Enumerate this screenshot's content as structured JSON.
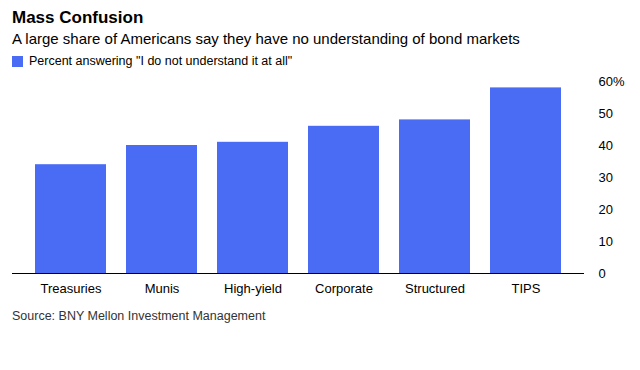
{
  "chart_data": {
    "type": "bar",
    "title": "Mass Confusion",
    "subtitle": "A large share of Americans say they have no understanding of bond markets",
    "caption": "Source: BNY Mellon Investment Management",
    "categories": [
      "Treasuries",
      "Munis",
      "High-yield",
      "Corporate",
      "Structured",
      "TIPS"
    ],
    "series": [
      {
        "name": "Percent answering \"I do not understand it at all\"",
        "color": "#4a6cf5",
        "values": [
          34,
          40,
          41,
          46,
          48,
          58
        ]
      }
    ],
    "ylim": [
      0,
      60
    ],
    "yticks": [
      0,
      10,
      20,
      30,
      40,
      50,
      {
        "value": 60,
        "label": "60%"
      }
    ],
    "legend": "top-left",
    "grid": false
  }
}
